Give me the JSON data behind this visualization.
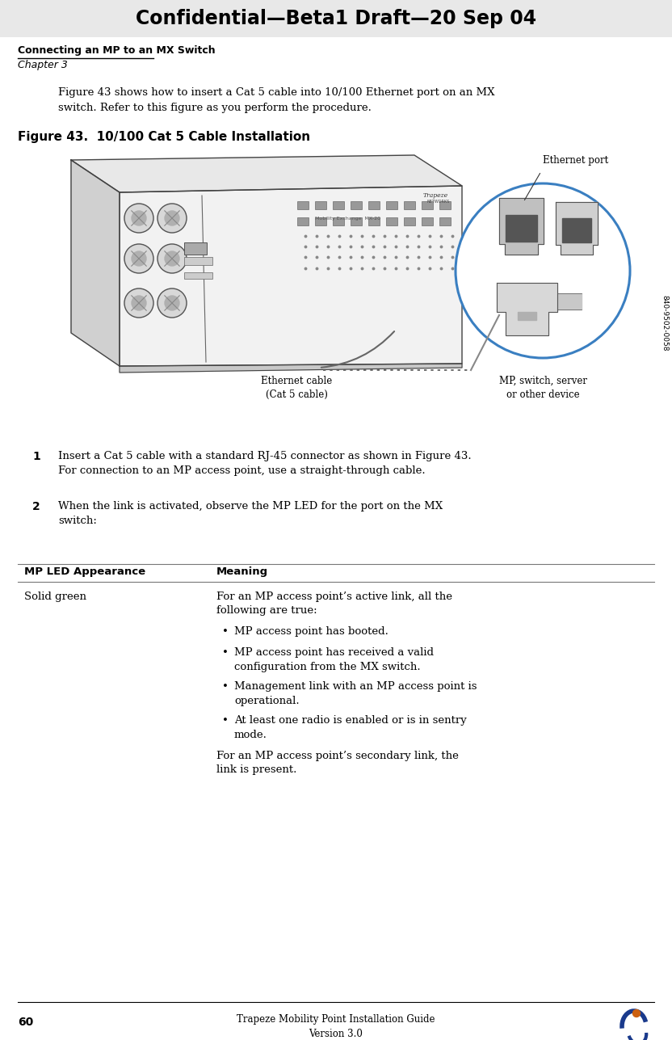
{
  "page_width": 8.32,
  "page_height": 12.87,
  "dpi": 100,
  "header_text": "Confidential—Beta1 Draft—20 Sep 04",
  "header_bg": "#e8e8e8",
  "header_font_size": 17,
  "section_title": "Connecting an MP to an MX Switch",
  "chapter_text": "Chapter 3",
  "intro_text": "Figure 43 shows how to insert a Cat 5 cable into 10/100 Ethernet port on an MX\nswitch. Refer to this figure as you perform the procedure.",
  "figure_caption": "Figure 43.  10/100 Cat 5 Cable Installation",
  "label_ethernet_port": "Ethernet port",
  "label_ethernet_cable": "Ethernet cable\n(Cat 5 cable)",
  "label_mp_device": "MP, switch, server\nor other device",
  "label_part_number": "840-9502-0058",
  "step1_bold": "1",
  "step1_text": "Insert a Cat 5 cable with a standard RJ-45 connector as shown in Figure 43.\nFor connection to an MP access point, use a straight-through cable.",
  "step2_bold": "2",
  "step2_text": "When the link is activated, observe the MP LED for the port on the MX\nswitch:",
  "table_header_left": "MP LED Appearance",
  "table_header_right": "Meaning",
  "table_row_left": "Solid green",
  "table_row_right_intro": "For an MP access point’s active link, all the\nfollowing are true:",
  "bullet1": "MP access point has booted.",
  "bullet2": "MP access point has received a valid\nconfiguration from the MX switch.",
  "bullet3": "Management link with an MP access point is\noperational.",
  "bullet4": "At least one radio is enabled or is in sentry\nmode.",
  "table_row_right_secondary": "For an MP access point’s secondary link, the\nlink is present.",
  "footer_page": "60",
  "footer_center": "Trapeze Mobility Point Installation Guide\nVersion 3.0",
  "bg_color": "#ffffff",
  "text_color": "#000000",
  "header_text_color": "#000000",
  "section_line_color": "#000000",
  "circle_color": "#3a7fc1",
  "dotted_line_color": "#555555",
  "footer_line_color": "#000000",
  "trapeze_logo_color_blue": "#1a3a8c",
  "trapeze_logo_color_orange": "#cc6010"
}
